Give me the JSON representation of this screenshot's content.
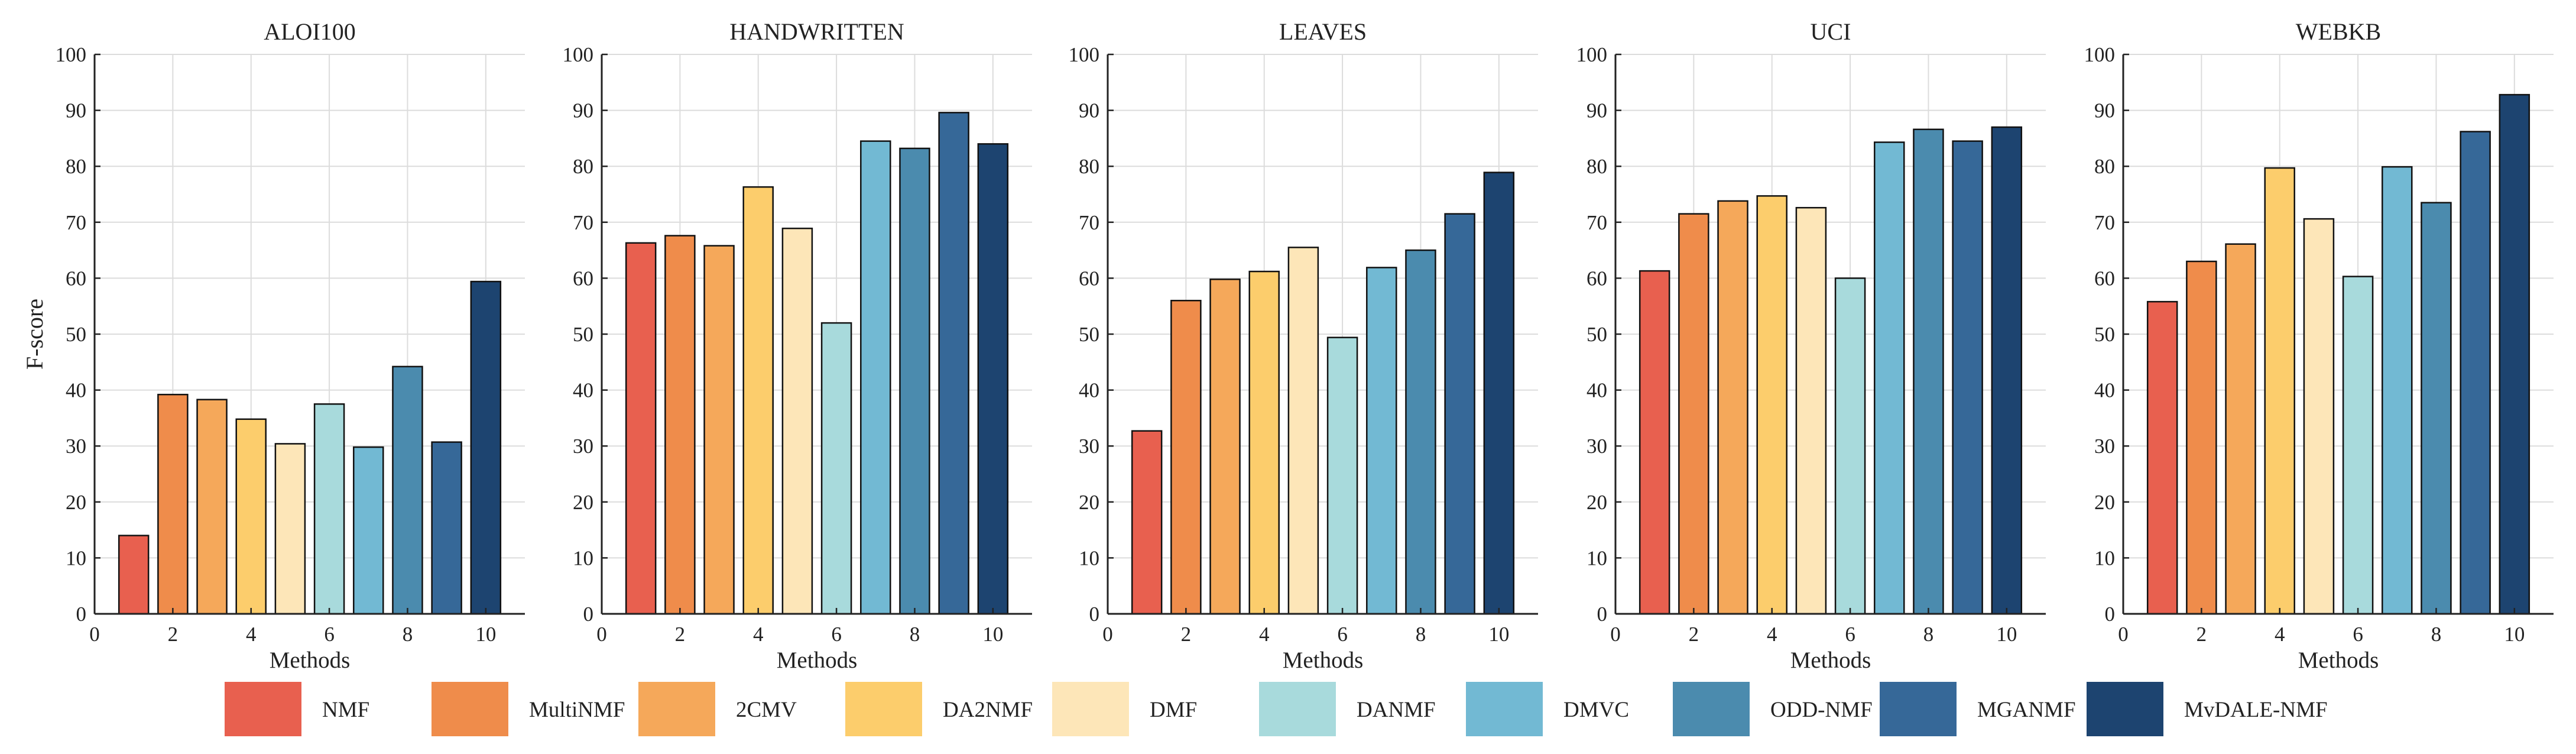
{
  "chart_data": {
    "type": "bar",
    "shared": {
      "xlabel": "Methods",
      "ylabel": "F-score",
      "ylim": [
        0,
        100
      ],
      "xlim": [
        0,
        11
      ],
      "xticks": [
        "0",
        "2",
        "4",
        "6",
        "8",
        "10"
      ],
      "yticks": [
        "0",
        "10",
        "20",
        "30",
        "40",
        "50",
        "60",
        "70",
        "80",
        "90",
        "100"
      ],
      "grid": true,
      "legend_position": "bottom"
    },
    "methods": [
      {
        "name": "NMF",
        "color": "#E8604F"
      },
      {
        "name": "MultiNMF",
        "color": "#EF8C4B"
      },
      {
        "name": "2CMV",
        "color": "#F5A85A"
      },
      {
        "name": "DA2NMF",
        "color": "#FCCD6C"
      },
      {
        "name": "DMF",
        "color": "#FDE6B8"
      },
      {
        "name": "DANMF",
        "color": "#A8DADC"
      },
      {
        "name": "DMVC",
        "color": "#72B9D3"
      },
      {
        "name": "ODD-NMF",
        "color": "#4B8BAE"
      },
      {
        "name": "MGANMF",
        "color": "#366898"
      },
      {
        "name": "MvDALE-NMF",
        "color": "#1D4470"
      }
    ],
    "panels": [
      {
        "title": "ALOI100",
        "values": [
          14.0,
          39.2,
          38.3,
          34.8,
          30.4,
          37.5,
          29.8,
          44.2,
          30.7,
          59.4
        ]
      },
      {
        "title": "HANDWRITTEN",
        "values": [
          66.3,
          67.6,
          65.8,
          76.3,
          68.9,
          52.0,
          84.5,
          83.2,
          89.6,
          84.0
        ]
      },
      {
        "title": "LEAVES",
        "values": [
          32.7,
          56.0,
          59.8,
          61.2,
          65.5,
          49.4,
          61.9,
          65.0,
          71.5,
          78.9
        ]
      },
      {
        "title": "UCI",
        "values": [
          61.3,
          71.5,
          73.8,
          74.7,
          72.6,
          60.0,
          84.3,
          86.6,
          84.5,
          87.0
        ]
      },
      {
        "title": "WEBKB",
        "values": [
          55.8,
          63.0,
          66.1,
          79.7,
          70.6,
          60.3,
          79.9,
          73.5,
          86.2,
          92.8
        ]
      }
    ]
  }
}
